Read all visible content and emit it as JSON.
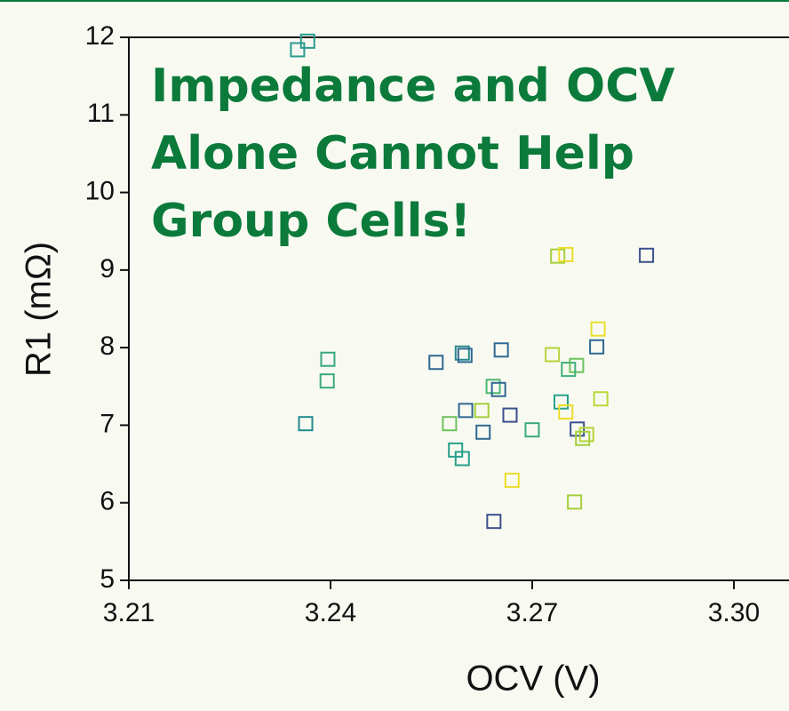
{
  "chart_data": {
    "type": "scatter",
    "x_label": "OCV (V)",
    "y_label": "R1 (mΩ)",
    "annotation_lines": [
      "Impedance and OCV",
      "Alone Cannot Help",
      "Group Cells!"
    ],
    "x": [
      3.2351,
      3.2366,
      3.2738,
      3.275,
      3.287,
      3.2798,
      3.2796,
      3.2654,
      3.2596,
      3.26,
      3.2557,
      3.2396,
      3.2395,
      3.273,
      3.2766,
      3.2754,
      3.2642,
      3.265,
      3.2743,
      3.2802,
      3.275,
      3.2625,
      3.2601,
      3.2667,
      3.2577,
      3.2363,
      3.27,
      3.2627,
      3.2767,
      3.2781,
      3.2775,
      3.2586,
      3.2596,
      3.267,
      3.2763,
      3.2643
    ],
    "values": [
      11.84,
      11.95,
      9.18,
      9.2,
      9.19,
      8.24,
      8.01,
      7.97,
      7.93,
      7.9,
      7.81,
      7.85,
      7.57,
      7.91,
      7.77,
      7.72,
      7.5,
      7.46,
      7.3,
      7.34,
      7.17,
      7.19,
      7.19,
      7.13,
      7.02,
      7.02,
      6.94,
      6.91,
      6.95,
      6.88,
      6.83,
      6.68,
      6.57,
      6.29,
      6.01,
      5.76
    ],
    "colors": [
      "#2a9a8f",
      "#2a9a8f",
      "#a5cf3a",
      "#ecdc2a",
      "#3b4f8c",
      "#e6df2c",
      "#2f6891",
      "#2f6891",
      "#288a8c",
      "#2f6891",
      "#2f6891",
      "#37a881",
      "#3aa97e",
      "#b6d43a",
      "#6cc35d",
      "#3fb078",
      "#4bb873",
      "#2f6891",
      "#27a08a",
      "#b9d83a",
      "#ecdc2a",
      "#a4ce3c",
      "#2f6891",
      "#3b4f8c",
      "#6cc35d",
      "#238a8c",
      "#3aa97e",
      "#2f6891",
      "#3b4f8c",
      "#b6d43a",
      "#a4ce3c",
      "#27a08a",
      "#27a08a",
      "#ecdc2a",
      "#a4ce3c",
      "#3b4f8c"
    ],
    "xlim": [
      3.21,
      3.3082
    ],
    "ylim": [
      5,
      12
    ],
    "xticks": [
      3.21,
      3.24,
      3.27,
      {
        "value": 3.3,
        "label": "3.30"
      }
    ],
    "yticks": [
      5,
      6,
      7,
      8,
      9,
      10,
      11,
      12
    ]
  }
}
